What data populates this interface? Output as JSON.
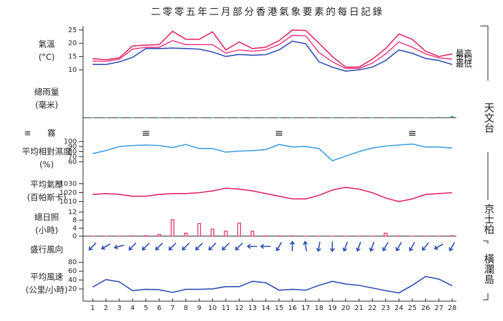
{
  "title": "二零零五年二月部分香港氣象要素的每日記錄",
  "stations": [
    "天文台",
    "京士柏",
    "橫瀾島"
  ],
  "chart_data": [
    {
      "type": "line",
      "ylabel": [
        "氣溫",
        "(°C)"
      ],
      "ylim": [
        6,
        26.5
      ],
      "yticks": [
        10,
        15,
        20,
        25
      ],
      "series": [
        {
          "name": "最高",
          "color": "#e3245e",
          "values": [
            14.2,
            13.8,
            14.5,
            19,
            19.3,
            19.5,
            24.5,
            21.5,
            21.5,
            24.3,
            17.5,
            20.5,
            18,
            18.5,
            21,
            25,
            24.8,
            20,
            15,
            11,
            11,
            14,
            18,
            23.5,
            21.5,
            17,
            15,
            16
          ]
        },
        {
          "name": "平均",
          "color": "#f0428a",
          "values": [
            13.3,
            13.2,
            14,
            17.8,
            18.5,
            18.5,
            21,
            19.5,
            19.5,
            19.5,
            16.3,
            17.5,
            17,
            17.5,
            19.5,
            23,
            22.8,
            16.5,
            13,
            10.5,
            10.5,
            12.5,
            16,
            20.5,
            18.5,
            16,
            14.5,
            14
          ]
        },
        {
          "name": "最低",
          "color": "#2b4bb3",
          "values": [
            12,
            12,
            13,
            14.7,
            18,
            18,
            18.2,
            18,
            17.8,
            16.7,
            15,
            15.8,
            15.5,
            15.7,
            17.5,
            20.8,
            19.8,
            13,
            11,
            9.5,
            10,
            11,
            13.5,
            17.5,
            16.2,
            14.3,
            13.5,
            12
          ]
        }
      ]
    },
    {
      "type": "bar",
      "ylabel": [
        "總雨量",
        "(毫米)"
      ],
      "ylim": [
        0,
        20
      ],
      "color": "#1f9a6a",
      "values": [
        0,
        0,
        0.1,
        0,
        0.1,
        0,
        0.1,
        0,
        0,
        0,
        0,
        0,
        0,
        0,
        0.1,
        0,
        0.1,
        0,
        0,
        0,
        0,
        0,
        0,
        0.2,
        0.2,
        0,
        0.3,
        0.8
      ]
    },
    {
      "type": "symbol",
      "symbol": "≡",
      "label": "霧",
      "x": [
        5,
        15,
        25
      ]
    },
    {
      "type": "line",
      "ylabel": [
        "平均相對濕度",
        "(%)"
      ],
      "ylim": [
        55,
        105
      ],
      "yticks": [
        60,
        70,
        80,
        90,
        100
      ],
      "color": "#3a9de0",
      "values": [
        76,
        82,
        90,
        92,
        93,
        92,
        88,
        94,
        86,
        86,
        79,
        81,
        82,
        84,
        94,
        89,
        90,
        86,
        62,
        71,
        80,
        87,
        91,
        93,
        95,
        89,
        89,
        87
      ]
    },
    {
      "type": "line",
      "ylabel": [
        "平均氣壓",
        "(百帕斯卡)"
      ],
      "ylim": [
        1005,
        1035
      ],
      "yticks": [
        1010,
        1020,
        1030
      ],
      "color": "#e0206a",
      "values": [
        1018,
        1019,
        1018,
        1016,
        1016,
        1018,
        1019,
        1019,
        1020,
        1022,
        1025,
        1024,
        1022,
        1019,
        1016,
        1013,
        1013,
        1017,
        1023,
        1026,
        1024,
        1020,
        1014,
        1010,
        1013,
        1018,
        1019,
        1020
      ]
    },
    {
      "type": "bar",
      "ylabel": [
        "總日照",
        "(小時)"
      ],
      "ylim": [
        0,
        13
      ],
      "yticks": [
        0,
        4,
        8,
        12
      ],
      "color": "#e3245e",
      "outline": true,
      "values": [
        0,
        0,
        0,
        0.1,
        0.2,
        0.8,
        8.2,
        1.5,
        6.3,
        3.5,
        2.5,
        6.5,
        2.5,
        0.1,
        0.1,
        0.1,
        0,
        0,
        0,
        0,
        0,
        0,
        1.5,
        0.1,
        0,
        0,
        0,
        0.2
      ]
    },
    {
      "type": "arrow",
      "ylabel": [
        "盛行風向"
      ],
      "color": "#2b4bb3",
      "values": [
        45,
        60,
        75,
        45,
        45,
        45,
        45,
        45,
        45,
        45,
        45,
        45,
        90,
        90,
        30,
        180,
        170,
        10,
        0,
        20,
        20,
        20,
        30,
        30,
        30,
        40,
        60,
        30
      ]
    },
    {
      "type": "line",
      "ylabel": [
        "平均風速",
        "(公里/小時)"
      ],
      "ylim": [
        0,
        85
      ],
      "yticks": [
        20,
        40,
        60,
        80
      ],
      "color": "#2b4bb3",
      "x": [
        1,
        2,
        3,
        4,
        5,
        6,
        7,
        8,
        9,
        10,
        11,
        12,
        13,
        14,
        15,
        16,
        17,
        18,
        19,
        20,
        21,
        22,
        23,
        24,
        25,
        26,
        27,
        28
      ],
      "values": [
        24,
        41,
        36,
        16,
        19,
        18,
        12,
        19,
        19,
        20,
        25,
        25,
        37,
        34,
        17,
        19,
        17,
        28,
        37,
        31,
        28,
        22,
        16,
        11,
        28,
        48,
        42,
        27
      ]
    }
  ]
}
